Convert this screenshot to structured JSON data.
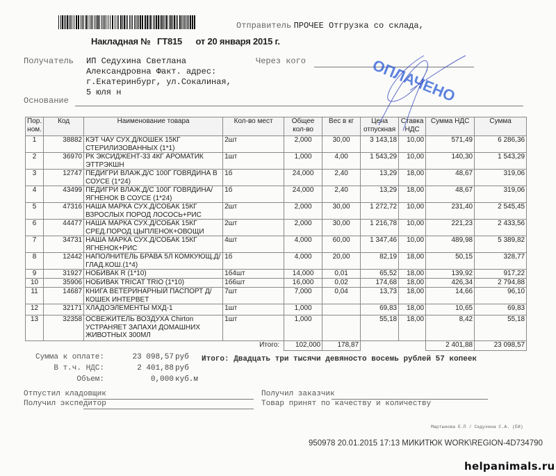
{
  "header": {
    "invoice_label": "Накладная №",
    "invoice_number": "ГТ815",
    "date": "от 20 января 2015 г.",
    "sender_label": "Отправитель",
    "sender_value": "ПРОЧЕЕ Отгрузка со склада,"
  },
  "recipient": {
    "label": "Получатель",
    "lines": [
      "ИП Седухина Светлана",
      "Александровна Факт. адрес:",
      "г.Екатеринбург, ул.Сокалиная,",
      "5 юля н"
    ],
    "via_label": "Через кого",
    "basis_label": "Основание"
  },
  "stamp": {
    "text": "ОПЛАЧЕНО",
    "color": "#2a5bd7"
  },
  "table": {
    "columns": [
      "Пор. ном.",
      "Код",
      "Наименование товара",
      "Кол-во мест",
      "Общее кол-во",
      "Вес в кг",
      "Цена отпускная",
      "Ставка НДС",
      "Сумма НДС",
      "Сумма"
    ],
    "rows": [
      {
        "n": "1",
        "code": "38882",
        "name": "КЭТ ЧАУ СУХ.Д/КОШЕК 15КГ СТЕРИЛИЗОВАННЫХ (1*1)",
        "places": "2шт",
        "qty": "2,000",
        "weight": "30,00",
        "price": "3 143,18",
        "vat_rate": "10,00",
        "vat_sum": "571,49",
        "sum": "6 286,36"
      },
      {
        "n": "2",
        "code": "36970",
        "name": "РК ЭКСИДЖЕНТ-33 4КГ АРОМАТИК ЭТТРЭКШН",
        "places": "1шт",
        "qty": "1,000",
        "weight": "4,00",
        "price": "1 543,29",
        "vat_rate": "10,00",
        "vat_sum": "140,30",
        "sum": "1 543,29"
      },
      {
        "n": "3",
        "code": "12747",
        "name": "ПЕДИГРИ ВЛАЖ.Д/С 100Г ГОВЯДИНА В СОУСЕ (1*24)",
        "places": "1б",
        "qty": "24,000",
        "weight": "2,40",
        "price": "13,29",
        "vat_rate": "18,00",
        "vat_sum": "48,67",
        "sum": "319,06"
      },
      {
        "n": "4",
        "code": "43499",
        "name": "ПЕДИГРИ ВЛАЖ.Д/С 100Г ГОВЯДИНА/ЯГНЕНОК В СОУСЕ (1*24)",
        "places": "1б",
        "qty": "24,000",
        "weight": "2,40",
        "price": "13,29",
        "vat_rate": "18,00",
        "vat_sum": "48,67",
        "sum": "319,06"
      },
      {
        "n": "5",
        "code": "47316",
        "name": "НАША МАРКА СУХ.Д/СОБАК 15КГ ВЗРОСЛЫХ ПОРОД ЛОСОСЬ+РИС",
        "places": "2шт",
        "qty": "2,000",
        "weight": "30,00",
        "price": "1 272,72",
        "vat_rate": "10,00",
        "vat_sum": "231,40",
        "sum": "2 545,45"
      },
      {
        "n": "6",
        "code": "44477",
        "name": "НАША МАРКА СУХ.Д/СОБАК 15КГ СРЕД.ПОРОД ЦЫПЛЕНОК+ОВОЩИ",
        "places": "2шт",
        "qty": "2,000",
        "weight": "30,00",
        "price": "1 216,78",
        "vat_rate": "10,00",
        "vat_sum": "221,23",
        "sum": "2 433,56"
      },
      {
        "n": "7",
        "code": "34731",
        "name": "НАША МАРКА СУХ.Д/СОБАК 15КГ ЯГНЕНОК+РИС",
        "places": "4шт",
        "qty": "4,000",
        "weight": "60,00",
        "price": "1 347,46",
        "vat_rate": "10,00",
        "vat_sum": "489,98",
        "sum": "5 389,82"
      },
      {
        "n": "8",
        "code": "12442",
        "name": "НАПОЛНИТЕЛЬ БРАВА 5Л КОМКУЮЩ.Д/ГЛАД.КОШ.(1*4)",
        "places": "1б",
        "qty": "4,000",
        "weight": "20,00",
        "price": "82,19",
        "vat_rate": "18,00",
        "vat_sum": "50,15",
        "sum": "328,77"
      },
      {
        "n": "9",
        "code": "31927",
        "name": "НОБИВАК R (1*10)",
        "places": "1б4шт",
        "qty": "14,000",
        "weight": "0,01",
        "price": "65,52",
        "vat_rate": "18,00",
        "vat_sum": "139,92",
        "sum": "917,22"
      },
      {
        "n": "10",
        "code": "35906",
        "name": "НОБИВАК TRICAT TRIO (1*10)",
        "places": "1б6шт",
        "qty": "16,000",
        "weight": "0,02",
        "price": "174,68",
        "vat_rate": "18,00",
        "vat_sum": "426,34",
        "sum": "2 794,88"
      },
      {
        "n": "11",
        "code": "14687",
        "name": "КНИГА ВЕТЕРИНАРНЫЙ ПАСПОРТ Д/КОШЕК ИНТЕРВЕТ",
        "places": "7шт",
        "qty": "7,000",
        "weight": "0,04",
        "price": "13,73",
        "vat_rate": "18,00",
        "vat_sum": "14,66",
        "sum": "96,10"
      },
      {
        "n": "12",
        "code": "32171",
        "name": "ХЛАДОЭЛЕМЕНТЫ МХД-1",
        "places": "1шт",
        "qty": "1,000",
        "weight": "",
        "price": "69,83",
        "vat_rate": "18,00",
        "vat_sum": "10,65",
        "sum": "69,83"
      },
      {
        "n": "13",
        "code": "32358",
        "name": "ОСВЕЖИТЕЛЬ ВОЗДУХА Chirton УСТРАНЯЕТ ЗАПАХИ ДОМАШНИХ ЖИВОТНЫХ 300МЛ",
        "places": "1шт",
        "qty": "1,000",
        "weight": "",
        "price": "55,18",
        "vat_rate": "18,00",
        "vat_sum": "8,42",
        "sum": "55,18"
      }
    ],
    "totals": {
      "label": "Итого:",
      "qty": "102,000",
      "weight": "178,87",
      "vat_sum": "2 401,88",
      "sum": "23 098,57"
    }
  },
  "summary": {
    "to_pay_label": "Сумма к оплате:",
    "to_pay": "23 098,57",
    "to_pay_unit": "руб",
    "vat_label": "В т.ч. НДС:",
    "vat": "2 401,88",
    "vat_unit": "руб",
    "volume_label": "Объем:",
    "volume": "0,000",
    "volume_unit": "куб.м",
    "words": "Итого: Двадцать три тысячи девяносто восемь рублей 57 копеек"
  },
  "signatures": {
    "storekeeper": "Отпустил кладовщик",
    "forwarder": "Получил экспедитор",
    "customer": "Получил заказчик",
    "accepted": "Товар принят по качеству и количеству"
  },
  "footer": {
    "names": "Мартынова Е.П / Седухина С.А. (ЕИ)",
    "id_line": "950978 20.01.2015 17:13 МИКИТЮК WORK\\REGION-4D734790",
    "watermark": "helpanimals.ru"
  }
}
